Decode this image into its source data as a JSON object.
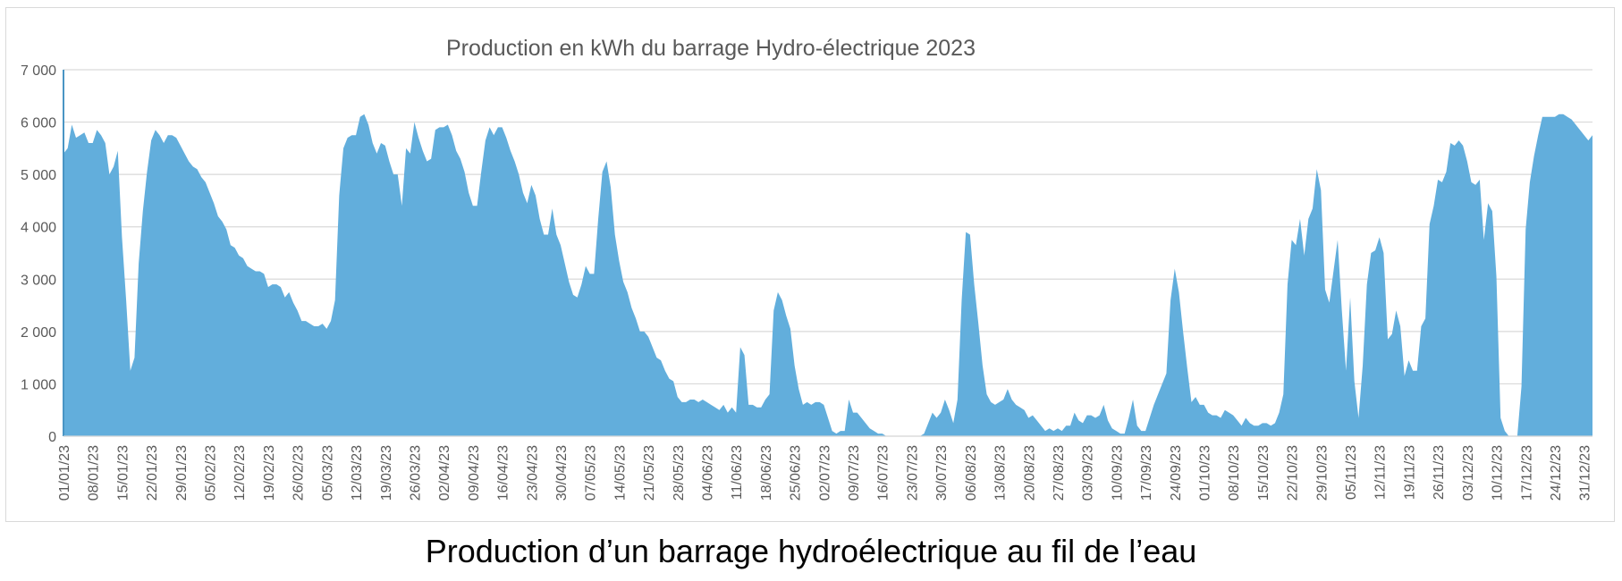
{
  "caption": "Production d’un barrage hydroélectrique au fil de l’eau",
  "chart_data": {
    "type": "area",
    "title": "Production en kWh du barrage Hydro-électrique 2023",
    "xlabel": "",
    "ylabel": "",
    "ylim": [
      0,
      7000
    ],
    "yticks": [
      0,
      1000,
      2000,
      3000,
      4000,
      5000,
      6000,
      7000
    ],
    "ytick_labels": [
      "0",
      "1 000",
      "2 000",
      "3 000",
      "4 000",
      "5 000",
      "6 000",
      "7 000"
    ],
    "grid": true,
    "legend": "none",
    "color": "#62aedc",
    "xtick_labels": [
      "01/01/23",
      "08/01/23",
      "15/01/23",
      "22/01/23",
      "29/01/23",
      "05/02/23",
      "12/02/23",
      "19/02/23",
      "26/02/23",
      "05/03/23",
      "12/03/23",
      "19/03/23",
      "26/03/23",
      "02/04/23",
      "09/04/23",
      "16/04/23",
      "23/04/23",
      "30/04/23",
      "07/05/23",
      "14/05/23",
      "21/05/23",
      "28/05/23",
      "04/06/23",
      "11/06/23",
      "18/06/23",
      "25/06/23",
      "02/07/23",
      "09/07/23",
      "16/07/23",
      "23/07/23",
      "30/07/23",
      "06/08/23",
      "13/08/23",
      "20/08/23",
      "27/08/23",
      "03/09/23",
      "10/09/23",
      "17/09/23",
      "24/09/23",
      "01/10/23",
      "08/10/23",
      "15/10/23",
      "22/10/23",
      "29/10/23",
      "05/11/23",
      "12/11/23",
      "19/11/23",
      "26/11/23",
      "03/12/23",
      "10/12/23",
      "17/12/23",
      "24/12/23",
      "31/12/23"
    ],
    "x_start": "01/01/23",
    "x_end": "31/12/23",
    "values": [
      5400,
      5500,
      5950,
      5700,
      5750,
      5800,
      5600,
      5600,
      5850,
      5750,
      5600,
      5000,
      5150,
      5450,
      3800,
      2600,
      1250,
      1500,
      3300,
      4300,
      5050,
      5650,
      5850,
      5750,
      5600,
      5750,
      5750,
      5700,
      5550,
      5400,
      5250,
      5150,
      5100,
      4950,
      4850,
      4650,
      4450,
      4200,
      4100,
      3950,
      3650,
      3600,
      3450,
      3400,
      3250,
      3200,
      3150,
      3150,
      3100,
      2850,
      2900,
      2900,
      2850,
      2650,
      2750,
      2550,
      2400,
      2200,
      2200,
      2150,
      2100,
      2100,
      2150,
      2050,
      2200,
      2600,
      4600,
      5500,
      5700,
      5750,
      5750,
      6100,
      6150,
      5950,
      5600,
      5400,
      5600,
      5550,
      5250,
      5000,
      5000,
      4400,
      5500,
      5400,
      6000,
      5700,
      5450,
      5250,
      5300,
      5850,
      5900,
      5900,
      5950,
      5750,
      5450,
      5300,
      5050,
      4650,
      4400,
      4400,
      5050,
      5650,
      5900,
      5750,
      5900,
      5900,
      5700,
      5450,
      5250,
      5000,
      4650,
      4450,
      4800,
      4600,
      4150,
      3850,
      3850,
      4350,
      3850,
      3650,
      3300,
      2950,
      2700,
      2650,
      2900,
      3250,
      3100,
      3100,
      4150,
      5050,
      5250,
      4750,
      3850,
      3350,
      2950,
      2750,
      2450,
      2250,
      2000,
      2000,
      1900,
      1700,
      1500,
      1450,
      1250,
      1100,
      1050,
      750,
      650,
      650,
      700,
      700,
      650,
      700,
      650,
      600,
      550,
      500,
      600,
      450,
      550,
      450,
      1700,
      1550,
      600,
      600,
      550,
      550,
      700,
      800,
      2400,
      2750,
      2600,
      2300,
      2050,
      1350,
      900,
      600,
      650,
      600,
      650,
      650,
      600,
      350,
      100,
      50,
      100,
      100,
      700,
      450,
      450,
      350,
      250,
      150,
      100,
      50,
      50,
      0,
      0,
      0,
      0,
      0,
      0,
      0,
      0,
      0,
      50,
      250,
      450,
      350,
      450,
      700,
      500,
      250,
      700,
      2600,
      3900,
      3850,
      2900,
      2150,
      1350,
      800,
      650,
      600,
      650,
      700,
      900,
      700,
      600,
      550,
      500,
      350,
      400,
      300,
      200,
      100,
      150,
      100,
      150,
      100,
      200,
      200,
      450,
      300,
      250,
      400,
      400,
      350,
      400,
      600,
      300,
      150,
      100,
      50,
      50,
      350,
      700,
      200,
      100,
      100,
      350,
      600,
      800,
      1000,
      1200,
      2600,
      3200,
      2750,
      2000,
      1300,
      650,
      750,
      600,
      600,
      450,
      400,
      400,
      350,
      500,
      450,
      400,
      300,
      200,
      350,
      250,
      200,
      200,
      250,
      250,
      200,
      250,
      450,
      800,
      2900,
      3750,
      3650,
      4150,
      3450,
      4150,
      4350,
      5100,
      4700,
      2800,
      2550,
      3150,
      3750,
      2400,
      1250,
      2650,
      1050,
      350,
      1350,
      2900,
      3500,
      3550,
      3800,
      3500,
      1850,
      1950,
      2400,
      2100,
      1150,
      1450,
      1250,
      1250,
      2100,
      2250,
      4050,
      4400,
      4900,
      4850,
      5050,
      5600,
      5550,
      5650,
      5550,
      5250,
      4850,
      4800,
      4900,
      3750,
      4450,
      4300,
      3050,
      350,
      100,
      0,
      0,
      0,
      950,
      3950,
      4850,
      5350,
      5750,
      6100,
      6100,
      6100,
      6100,
      6150,
      6150,
      6100,
      6050,
      5950,
      5850,
      5750,
      5650,
      5750
    ]
  }
}
